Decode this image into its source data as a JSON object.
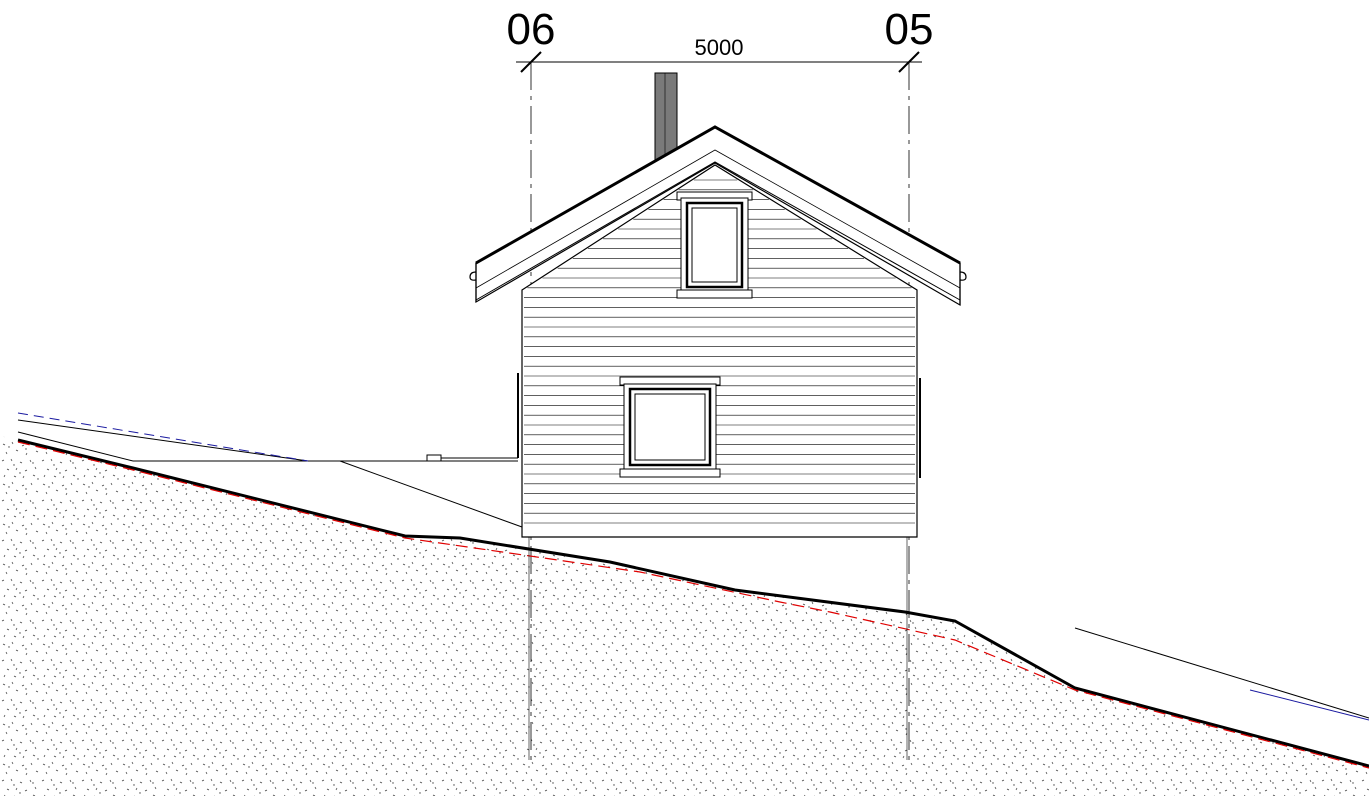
{
  "grid_axes": [
    {
      "label": "06"
    },
    {
      "label": "05"
    }
  ],
  "dimension": {
    "value": "5000"
  },
  "colors": {
    "line": "#000000",
    "terrain_line": "#e00000",
    "blue_dashed": "#1a1aa0",
    "chimney": "#7a7a7a",
    "ground_fill": "#ffffff",
    "gravel_dots": "#444444"
  }
}
